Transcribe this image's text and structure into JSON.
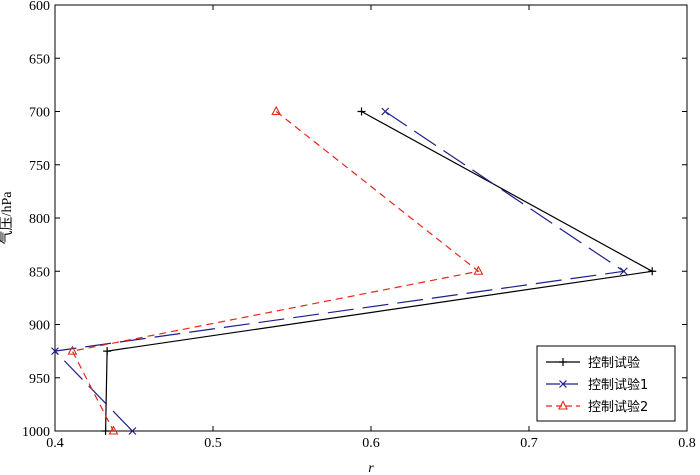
{
  "chart_data": {
    "type": "line",
    "xlabel": "r",
    "ylabel": "气压/hPa",
    "xlim": [
      0.4,
      0.8
    ],
    "ylim": [
      600,
      1000
    ],
    "y_inverted": true,
    "xticks": [
      0.4,
      0.5,
      0.6,
      0.7,
      0.8
    ],
    "yticks": [
      600,
      650,
      700,
      750,
      800,
      850,
      900,
      950,
      1000
    ],
    "grid": false,
    "legend_position": "bottom-right",
    "series": [
      {
        "name": "控制试验",
        "color": "#000000",
        "line_style": "solid",
        "marker": "plus",
        "points": [
          [
            0.594,
            700
          ],
          [
            0.778,
            850
          ],
          [
            0.433,
            925
          ],
          [
            0.432,
            1000
          ]
        ]
      },
      {
        "name": "控制试验1",
        "color": "#1f1f8f",
        "line_style": "long-dash",
        "marker": "x",
        "points": [
          [
            0.609,
            700
          ],
          [
            0.76,
            850
          ],
          [
            0.4,
            925
          ],
          [
            0.449,
            1000
          ]
        ]
      },
      {
        "name": "控制试验2",
        "color": "#e8251a",
        "line_style": "dash",
        "marker": "triangle",
        "points": [
          [
            0.54,
            700
          ],
          [
            0.668,
            850
          ],
          [
            0.411,
            925
          ],
          [
            0.437,
            1000
          ]
        ]
      }
    ]
  }
}
